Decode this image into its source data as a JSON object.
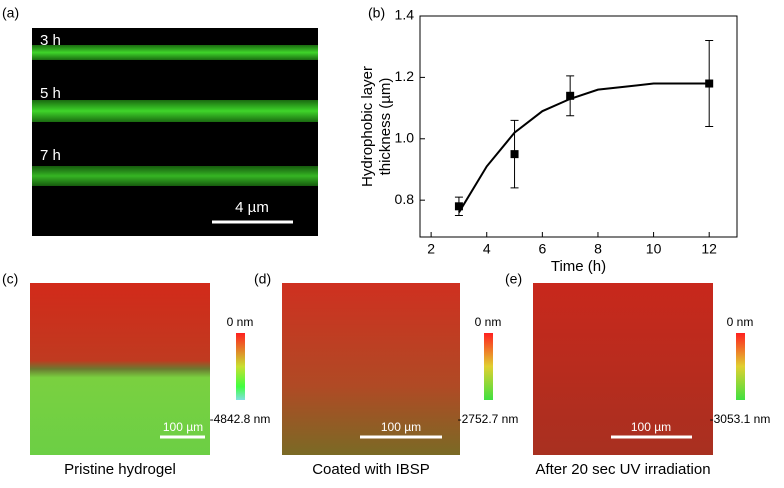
{
  "panels": {
    "a": {
      "label": "(a)",
      "times": [
        "3 h",
        "5 h",
        "7 h"
      ],
      "scale": "4 µm"
    },
    "b": {
      "label": "(b)"
    },
    "c": {
      "label": "(c)",
      "top": "0 nm",
      "bottom": "-4842.8 nm",
      "scale": "100 µm",
      "caption": "Pristine hydrogel"
    },
    "d": {
      "label": "(d)",
      "top": "0 nm",
      "bottom": "-2752.7 nm",
      "scale": "100 µm",
      "caption": "Coated with IBSP"
    },
    "e": {
      "label": "(e)",
      "top": "0 nm",
      "bottom": "-3053.1 nm",
      "scale": "100 µm",
      "caption": "After 20 sec UV irradiation"
    }
  },
  "chart_data": {
    "type": "scatter",
    "xlabel": "Time (h)",
    "ylabel": [
      "Hydrophobic layer",
      "thickness (µm)"
    ],
    "x": [
      3,
      5,
      7,
      12
    ],
    "values": [
      0.78,
      0.95,
      1.14,
      1.18
    ],
    "errors": [
      0.03,
      0.11,
      0.065,
      0.14
    ],
    "color": "#000000",
    "fit": {
      "x": [
        3,
        4,
        5,
        6,
        7,
        8,
        9,
        10,
        11,
        12
      ],
      "values": [
        0.76,
        0.91,
        1.02,
        1.09,
        1.13,
        1.16,
        1.17,
        1.18,
        1.18,
        1.18
      ]
    },
    "xlim": [
      1.6,
      13
    ],
    "ylim": [
      0.68,
      1.4
    ],
    "xticks": [
      2,
      4,
      6,
      8,
      10,
      12
    ],
    "yticks": [
      0.8,
      {
        "value": 1,
        "label": "1.0"
      },
      1.2,
      1.4
    ]
  }
}
